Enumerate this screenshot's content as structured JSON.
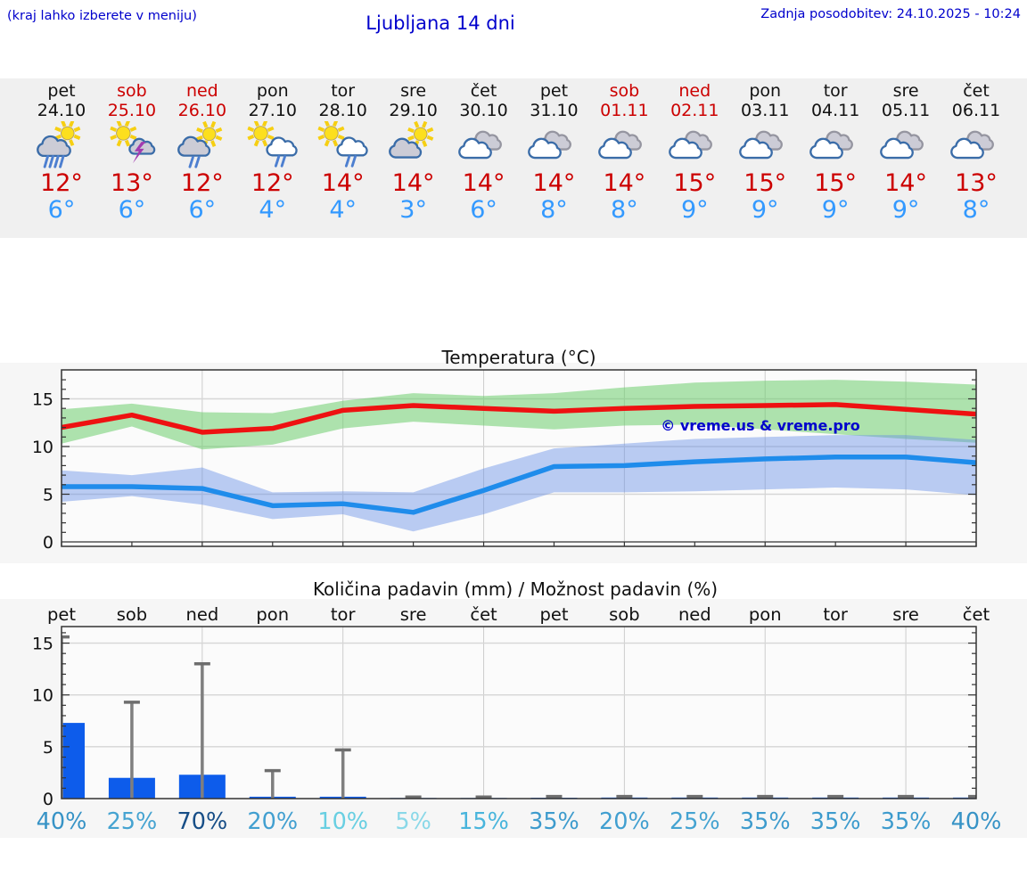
{
  "header": {
    "hint": "(kraj lahko izberete v meniju)",
    "title": "Ljubljana 14 dni",
    "updated": "Zadnja posodobitev: 24.10.2025 - 10:24"
  },
  "strip": {
    "days": [
      {
        "name": "pet",
        "date": "24.10",
        "weekend": false,
        "icon": "sun-rain",
        "tmax": "12°",
        "tmin": "6°"
      },
      {
        "name": "sob",
        "date": "25.10",
        "weekend": true,
        "icon": "sun-storm",
        "tmax": "13°",
        "tmin": "6°"
      },
      {
        "name": "ned",
        "date": "26.10",
        "weekend": true,
        "icon": "sun-drizzle",
        "tmax": "12°",
        "tmin": "6°"
      },
      {
        "name": "pon",
        "date": "27.10",
        "weekend": false,
        "icon": "sun-cloud-drizzle",
        "tmax": "12°",
        "tmin": "4°"
      },
      {
        "name": "tor",
        "date": "28.10",
        "weekend": false,
        "icon": "sun-cloud-drizzle",
        "tmax": "14°",
        "tmin": "4°"
      },
      {
        "name": "sre",
        "date": "29.10",
        "weekend": false,
        "icon": "sun-cloud",
        "tmax": "14°",
        "tmin": "3°"
      },
      {
        "name": "čet",
        "date": "30.10",
        "weekend": false,
        "icon": "clouds",
        "tmax": "14°",
        "tmin": "6°"
      },
      {
        "name": "pet",
        "date": "31.10",
        "weekend": false,
        "icon": "clouds",
        "tmax": "14°",
        "tmin": "8°"
      },
      {
        "name": "sob",
        "date": "01.11",
        "weekend": true,
        "icon": "clouds",
        "tmax": "14°",
        "tmin": "8°"
      },
      {
        "name": "ned",
        "date": "02.11",
        "weekend": true,
        "icon": "clouds",
        "tmax": "15°",
        "tmin": "9°"
      },
      {
        "name": "pon",
        "date": "03.11",
        "weekend": false,
        "icon": "clouds",
        "tmax": "15°",
        "tmin": "9°"
      },
      {
        "name": "tor",
        "date": "04.11",
        "weekend": false,
        "icon": "clouds",
        "tmax": "15°",
        "tmin": "9°"
      },
      {
        "name": "sre",
        "date": "05.11",
        "weekend": false,
        "icon": "clouds",
        "tmax": "14°",
        "tmin": "9°"
      },
      {
        "name": "čet",
        "date": "06.11",
        "weekend": false,
        "icon": "clouds",
        "tmax": "13°",
        "tmin": "8°"
      }
    ]
  },
  "chart_data": [
    {
      "type": "line",
      "title": "Temperatura (°C)",
      "watermark": "© vreme.us & vreme.pro",
      "categories": [
        "24.10",
        "25.10",
        "26.10",
        "27.10",
        "28.10",
        "29.10",
        "30.10",
        "31.10",
        "01.11",
        "02.11",
        "03.11",
        "04.11",
        "05.11",
        "06.11"
      ],
      "ylim": [
        -0.5,
        18.5
      ],
      "yticks": [
        0,
        5,
        10,
        15
      ],
      "grid": "on",
      "legend": "none",
      "series": [
        {
          "name": "max-temperature",
          "color": "#ee1111",
          "values": [
            12.0,
            13.3,
            11.5,
            11.9,
            13.8,
            14.3,
            14.0,
            13.7,
            14.0,
            14.2,
            14.3,
            14.4,
            13.9,
            13.4
          ]
        },
        {
          "name": "min-temperature",
          "color": "#1f8ceb",
          "values": [
            5.8,
            5.8,
            5.6,
            3.8,
            4.0,
            3.1,
            5.4,
            7.9,
            8.0,
            8.4,
            8.7,
            8.9,
            8.9,
            8.3
          ]
        }
      ],
      "bands": [
        {
          "name": "max-range",
          "color": "rgba(110,205,110,0.55)",
          "upper": [
            13.9,
            14.5,
            13.6,
            13.5,
            14.8,
            15.6,
            15.3,
            15.6,
            16.2,
            16.7,
            16.9,
            17.0,
            16.8,
            16.5
          ],
          "lower": [
            10.3,
            12.1,
            9.7,
            10.2,
            11.9,
            12.6,
            12.2,
            11.8,
            12.2,
            12.3,
            11.8,
            11.3,
            10.8,
            10.4
          ]
        },
        {
          "name": "min-range",
          "color": "rgba(105,145,230,0.45)",
          "upper": [
            7.5,
            7.0,
            7.8,
            5.2,
            5.3,
            5.2,
            7.7,
            9.8,
            10.3,
            10.8,
            11.0,
            11.2,
            11.2,
            10.7
          ],
          "lower": [
            4.2,
            4.8,
            3.9,
            2.4,
            2.9,
            1.1,
            2.9,
            5.2,
            5.2,
            5.3,
            5.5,
            5.7,
            5.5,
            4.9
          ]
        }
      ]
    },
    {
      "type": "bar",
      "title": "Količina padavin (mm) / Možnost padavin (%)",
      "categories": [
        "pet",
        "sob",
        "ned",
        "pon",
        "tor",
        "sre",
        "čet",
        "pet",
        "sob",
        "ned",
        "pon",
        "tor",
        "sre",
        "čet"
      ],
      "values": [
        7.3,
        2.0,
        2.3,
        0.18,
        0.18,
        0.06,
        0.06,
        0.08,
        0.1,
        0.1,
        0.1,
        0.1,
        0.1,
        0.1
      ],
      "bar_color": "#0d5ceb",
      "whisker_max": [
        15.6,
        9.3,
        13.0,
        2.7,
        4.7,
        0.15,
        0.15,
        0.2,
        0.2,
        0.2,
        0.2,
        0.2,
        0.2,
        0.2
      ],
      "whisker_color": "#7f7f7f",
      "ylim": [
        0,
        16.6
      ],
      "yticks": [
        0,
        5,
        10,
        15
      ],
      "grid": "on",
      "pop": [
        {
          "label": "40%",
          "color": "#3793c6"
        },
        {
          "label": "25%",
          "color": "#45a3d1"
        },
        {
          "label": "70%",
          "color": "#174e87"
        },
        {
          "label": "20%",
          "color": "#419fd0"
        },
        {
          "label": "10%",
          "color": "#68cfe2"
        },
        {
          "label": "5%",
          "color": "#8ad8e8"
        },
        {
          "label": "15%",
          "color": "#49b5dc"
        },
        {
          "label": "35%",
          "color": "#3d9bcd"
        },
        {
          "label": "20%",
          "color": "#419fd0"
        },
        {
          "label": "25%",
          "color": "#45a3d1"
        },
        {
          "label": "35%",
          "color": "#3d9bcd"
        },
        {
          "label": "35%",
          "color": "#3d9bcd"
        },
        {
          "label": "35%",
          "color": "#3d9bcd"
        },
        {
          "label": "40%",
          "color": "#3793c6"
        }
      ]
    }
  ]
}
